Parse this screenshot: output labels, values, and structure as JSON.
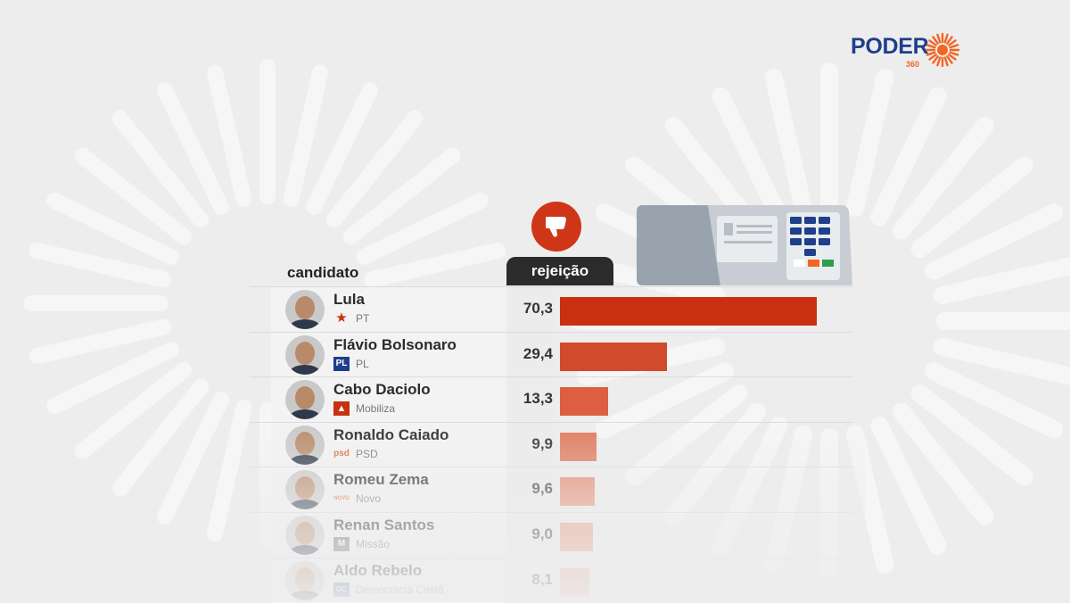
{
  "brand": {
    "logo_word": "PODER",
    "logo_sub": "360",
    "colors": {
      "blue": "#1f3e8c",
      "orange": "#f26522"
    }
  },
  "icons": {
    "thumb": "thumbs-down-icon",
    "urn": "voting-machine-icon"
  },
  "table": {
    "header_candidate": "candidato",
    "header_value": "rejeição"
  },
  "colors": {
    "bar_top": "#c9300f",
    "header_dark": "#2b2b2b",
    "thumb_bg": "#cf3617"
  },
  "chart_data": {
    "type": "bar",
    "orientation": "horizontal",
    "value_axis_label": "rejeição",
    "category_axis_label": "candidato",
    "categories": [
      "Lula",
      "Flávio Bolsonaro",
      "Cabo Daciolo",
      "Ronaldo Caiado",
      "Romeu Zema",
      "Renan Santos",
      "Aldo Rebelo"
    ],
    "values": [
      70.3,
      29.4,
      13.3,
      9.9,
      9.6,
      9.0,
      8.1
    ],
    "value_labels": [
      "70,3",
      "29,4",
      "13,3",
      "9,9",
      "9,6",
      "9,0",
      "8,1"
    ],
    "parties": [
      "PT",
      "PL",
      "Mobiliza",
      "PSD",
      "Novo",
      "Missão",
      "Democracia Cristã"
    ],
    "party_marks": [
      "★",
      "PL",
      "▲",
      "psd",
      "NOVO",
      "M",
      "DC"
    ],
    "bar_colors": [
      "#c9300f",
      "#d14a2b",
      "#db5f40",
      "#e07a5e",
      "#e5886e",
      "#e7967f",
      "#e9a490"
    ],
    "legend": "none",
    "grid": false
  }
}
